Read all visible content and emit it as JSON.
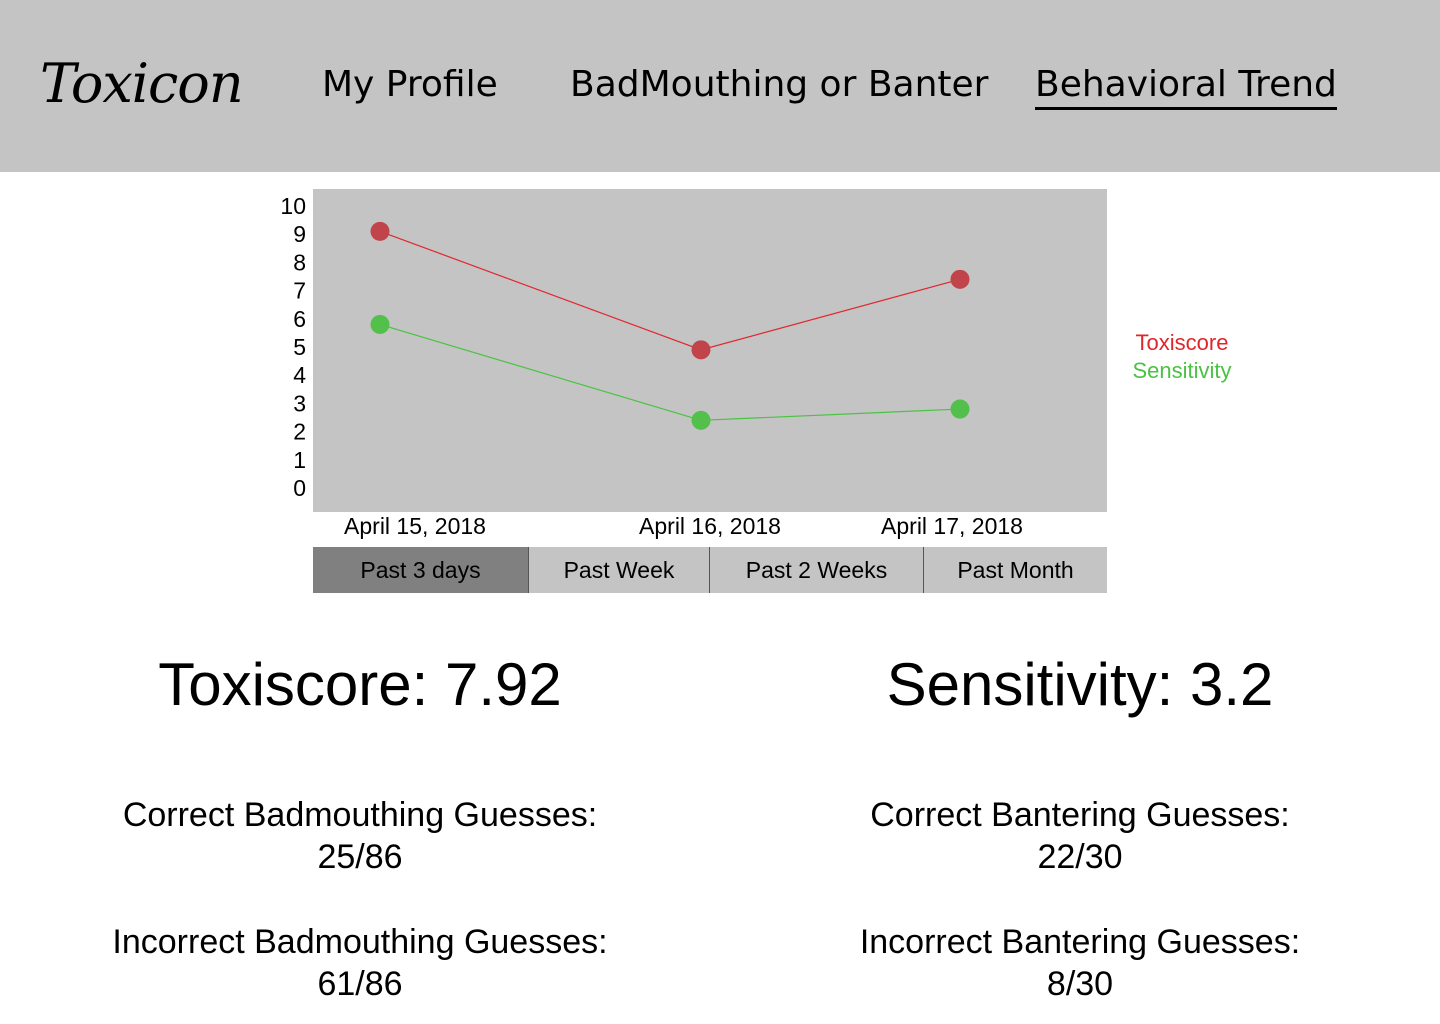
{
  "header": {
    "logo": "Toxicon",
    "nav": {
      "profile": "My Profile",
      "badmouthing": "BadMouthing or Banter",
      "trend": "Behavioral Trend"
    }
  },
  "chart_data": {
    "type": "line",
    "x": [
      "April 15, 2018",
      "April 16, 2018",
      "April 17, 2018"
    ],
    "series": [
      {
        "name": "Toxiscore",
        "color": "#e0262c",
        "values": [
          9.1,
          4.9,
          7.4
        ]
      },
      {
        "name": "Sensitivity",
        "color": "#49c341",
        "values": [
          5.8,
          2.4,
          2.8
        ]
      }
    ],
    "yticks": [
      "10",
      "9",
      "8",
      "7",
      "6",
      "5",
      "4",
      "3",
      "2",
      "1",
      "0"
    ],
    "ylim": [
      0,
      10
    ],
    "grid": false,
    "legend": "right"
  },
  "ranges": [
    "Past 3 days",
    "Past Week",
    "Past 2 Weeks",
    "Past Month"
  ],
  "selected_range": "Past 3 days",
  "stats": {
    "toxiscore": {
      "heading": "Toxiscore: 7.92",
      "correct_label": "Correct Badmouthing Guesses:",
      "correct_value": "25/86",
      "incorrect_label": "Incorrect Badmouthing Guesses:",
      "incorrect_value": "61/86"
    },
    "sensitivity": {
      "heading": "Sensitivity: 3.2",
      "correct_label": "Correct Bantering Guesses:",
      "correct_value": "22/30",
      "incorrect_label": "Incorrect Bantering Guesses:",
      "incorrect_value": "8/30"
    }
  }
}
